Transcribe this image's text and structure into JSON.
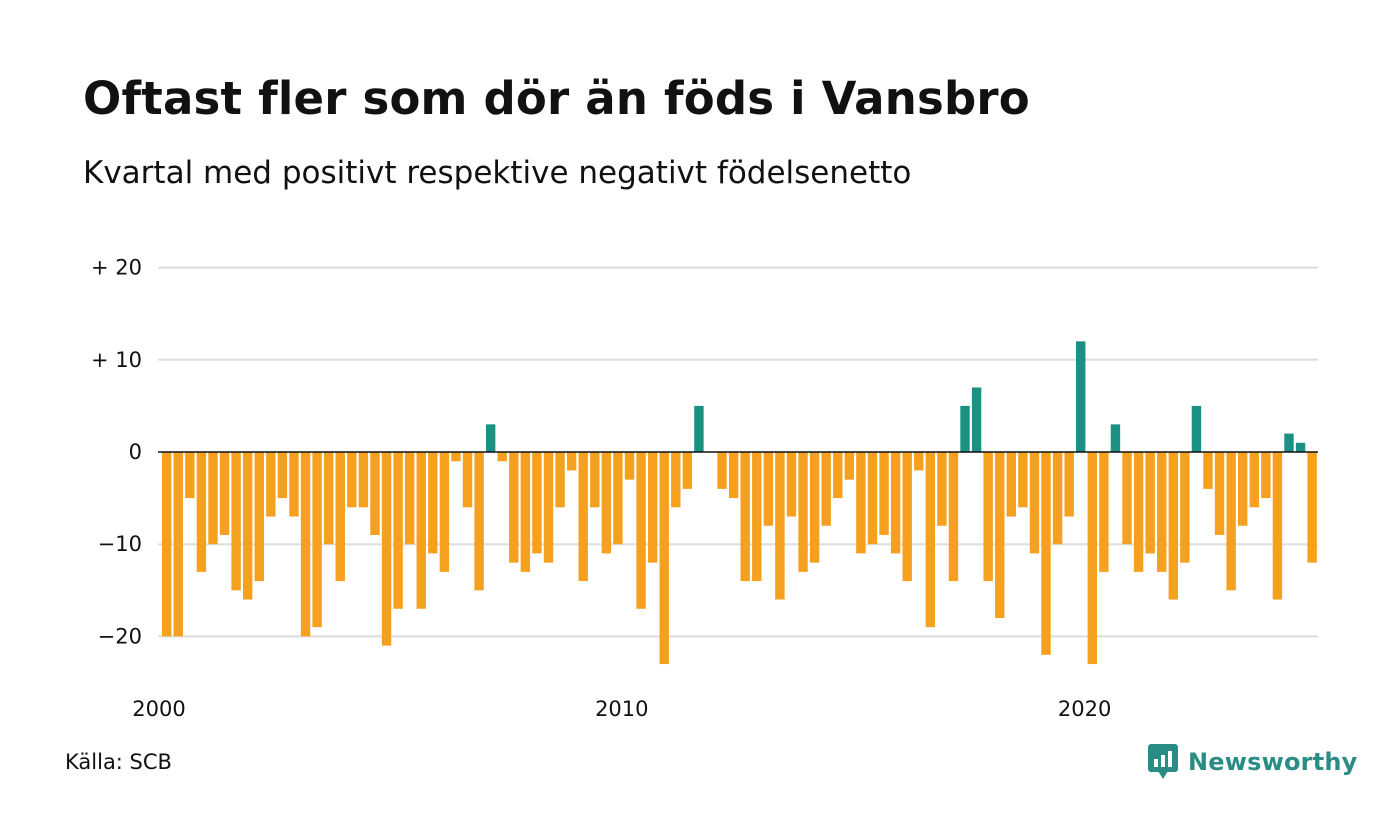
{
  "header": {
    "title": "Oftast fler som dör än föds i Vansbro",
    "subtitle": "Kvartal med positivt respektive negativt födelsenetto"
  },
  "footer": {
    "source": "Källa: SCB",
    "brand": "Newsworthy",
    "brand_color": "#2a8c84",
    "brand_icon": "chart-bubble-icon"
  },
  "chart_data": {
    "type": "bar",
    "ylim": [
      -25,
      22
    ],
    "y_ticks": [
      {
        "value": 20,
        "label": "+ 20"
      },
      {
        "value": 10,
        "label": "+ 10"
      },
      {
        "value": 0,
        "label": "0"
      },
      {
        "value": -10,
        "label": "−10"
      },
      {
        "value": -20,
        "label": "−20"
      }
    ],
    "x_ticks": [
      {
        "year": 2000,
        "label": "2000"
      },
      {
        "year": 2010,
        "label": "2010"
      },
      {
        "year": 2020,
        "label": "2020"
      }
    ],
    "grid": true,
    "colors": {
      "positive": "#1b9184",
      "negative": "#f5a01e",
      "grid": "#dddddd",
      "zero_line": "#111111"
    },
    "start_quarter": "2000 Q1",
    "values": [
      -20,
      -20,
      -5,
      -13,
      -10,
      -9,
      -15,
      -16,
      -14,
      -7,
      -5,
      -7,
      -20,
      -19,
      -10,
      -14,
      -6,
      -6,
      -9,
      -21,
      -17,
      -10,
      -17,
      -11,
      -13,
      -1,
      -6,
      -15,
      3,
      -1,
      -12,
      -13,
      -11,
      -12,
      -6,
      -2,
      -14,
      -6,
      -11,
      -10,
      -3,
      -17,
      -12,
      -23,
      -6,
      -4,
      5,
      0,
      -4,
      -5,
      -14,
      -14,
      -8,
      -16,
      -7,
      -13,
      -12,
      -8,
      -5,
      -3,
      -11,
      -10,
      -9,
      -11,
      -14,
      -2,
      -19,
      -8,
      -14,
      5,
      7,
      -14,
      -18,
      -7,
      -6,
      -11,
      -22,
      -10,
      -7,
      12,
      -23,
      -13,
      3,
      -10,
      -13,
      -11,
      -13,
      -16,
      -12,
      5,
      -4,
      -9,
      -15,
      -8,
      -6,
      -5,
      -16,
      2,
      1,
      -12
    ]
  }
}
